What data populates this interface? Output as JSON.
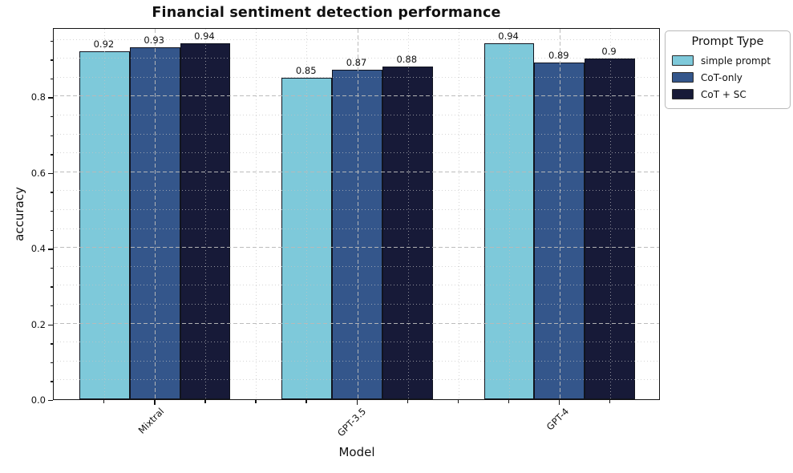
{
  "chart_data": {
    "type": "bar",
    "title": "Financial sentiment detection performance",
    "xlabel": "Model",
    "ylabel": "accuracy",
    "categories": [
      "Mixtral",
      "GPT-3.5",
      "GPT-4"
    ],
    "series": [
      {
        "name": "simple prompt",
        "color": "#7ec9da",
        "values": [
          0.92,
          0.85,
          0.94
        ],
        "labels": [
          "0.92",
          "0.85",
          "0.94"
        ]
      },
      {
        "name": "CoT-only",
        "color": "#34568b",
        "values": [
          0.93,
          0.87,
          0.89
        ],
        "labels": [
          "0.93",
          "0.87",
          "0.89"
        ]
      },
      {
        "name": "CoT + SC",
        "color": "#171a38",
        "values": [
          0.94,
          0.88,
          0.9
        ],
        "labels": [
          "0.94",
          "0.88",
          "0.9"
        ]
      }
    ],
    "legend": {
      "title": "Prompt Type",
      "position": "upper-right-outside"
    },
    "y_ticks": [
      0.0,
      0.2,
      0.4,
      0.6,
      0.8
    ],
    "y_tick_labels": [
      "0.0",
      "0.2",
      "0.4",
      "0.6",
      "0.8"
    ],
    "ylim": [
      0,
      0.983
    ],
    "grid": {
      "major": "dashed",
      "minor": "dotted",
      "minor_y_step": 0.05,
      "minor_x_per_group": 4
    },
    "bar_edge_color": "#10141f"
  }
}
